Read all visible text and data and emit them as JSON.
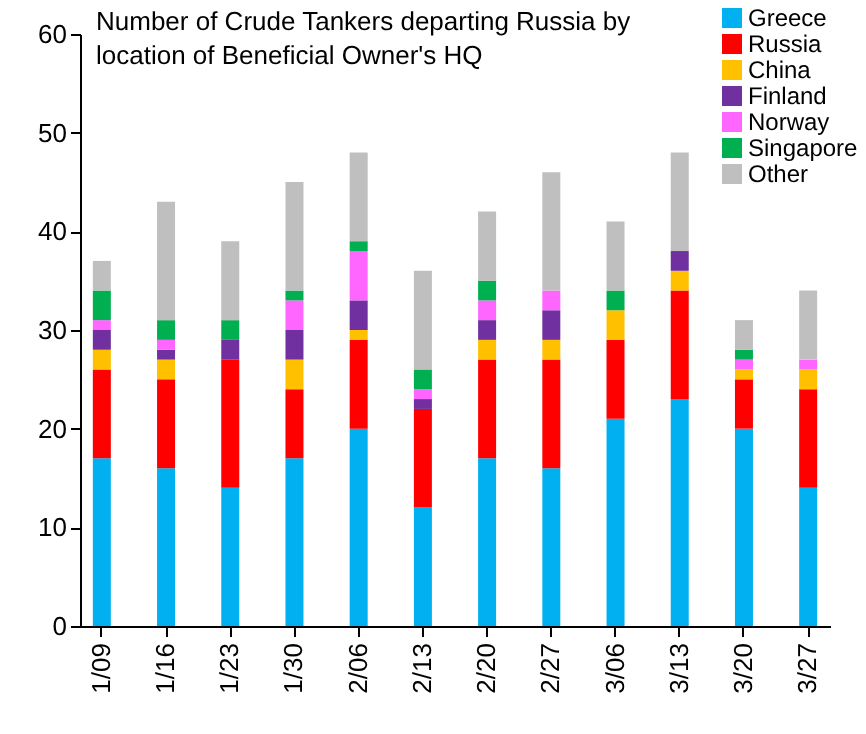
{
  "chart_data": {
    "type": "bar",
    "stacked": true,
    "title": "Number of Crude Tankers departing Russia by location of Beneficial Owner's HQ",
    "categories": [
      "1/09",
      "1/16",
      "1/23",
      "1/30",
      "2/06",
      "2/13",
      "2/20",
      "2/27",
      "3/06",
      "3/13",
      "3/20",
      "3/27"
    ],
    "series": [
      {
        "name": "Greece",
        "color": "#00b0f0",
        "values": [
          17,
          16,
          14,
          17,
          20,
          12,
          17,
          16,
          21,
          23,
          20,
          14
        ]
      },
      {
        "name": "Russia",
        "color": "#ff0000",
        "values": [
          9,
          9,
          13,
          7,
          9,
          10,
          10,
          11,
          8,
          11,
          5,
          10
        ]
      },
      {
        "name": "China",
        "color": "#ffc000",
        "values": [
          2,
          2,
          0,
          3,
          1,
          0,
          2,
          2,
          3,
          2,
          1,
          2
        ]
      },
      {
        "name": "Finland",
        "color": "#7030a0",
        "values": [
          2,
          1,
          2,
          3,
          3,
          1,
          2,
          3,
          0,
          2,
          0,
          0
        ]
      },
      {
        "name": "Norway",
        "color": "#ff66ff",
        "values": [
          1,
          1,
          0,
          3,
          5,
          1,
          2,
          2,
          0,
          0,
          1,
          1
        ]
      },
      {
        "name": "Singapore",
        "color": "#00b050",
        "values": [
          3,
          2,
          2,
          1,
          1,
          2,
          2,
          0,
          2,
          0,
          1,
          0
        ]
      },
      {
        "name": "Other",
        "color": "#bfbfbf",
        "values": [
          3,
          12,
          8,
          11,
          9,
          10,
          7,
          12,
          7,
          10,
          3,
          7
        ]
      }
    ],
    "ylim": [
      0,
      60
    ],
    "yticks": [
      0,
      10,
      20,
      30,
      40,
      50,
      60
    ],
    "grid": false,
    "legend": "top right"
  }
}
